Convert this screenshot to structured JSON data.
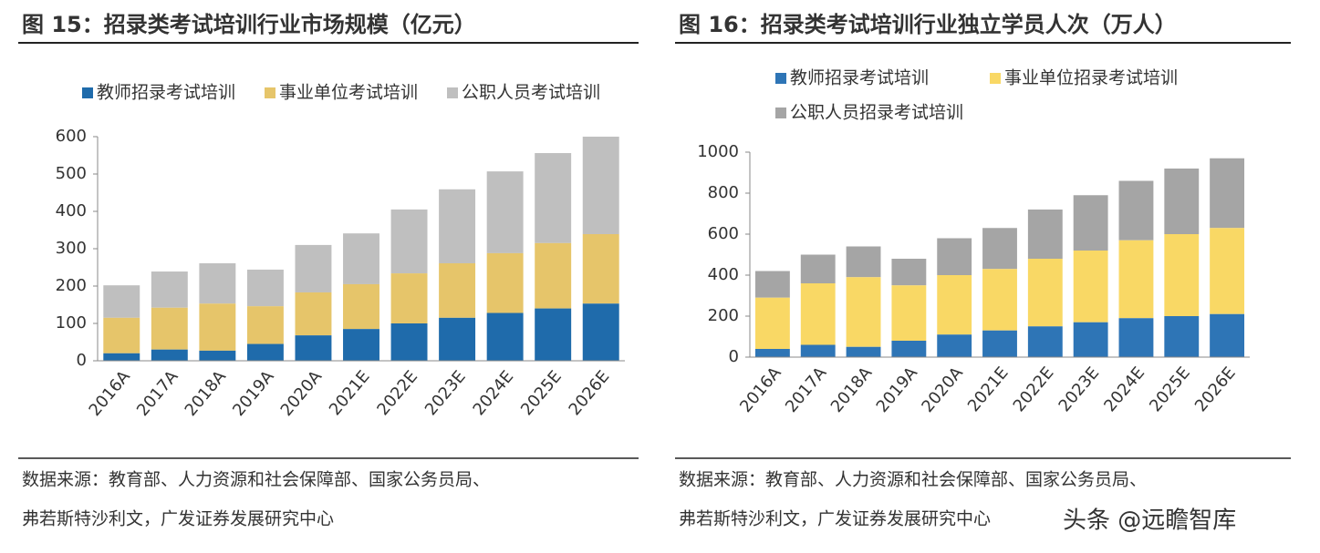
{
  "chart_data": [
    {
      "type": "bar",
      "stacked": true,
      "title": "图 15：招录类考试培训行业市场规模（亿元）",
      "source": [
        "数据来源：教育部、人力资源和社会保障部、国家公务员局、",
        "弗若斯特沙利文，广发证券发展研究中心"
      ],
      "categories": [
        "2016A",
        "2017A",
        "2018A",
        "2019A",
        "2020A",
        "2021E",
        "2022E",
        "2023E",
        "2024E",
        "2025E",
        "2026E"
      ],
      "series": [
        {
          "name": "教师招录考试培训",
          "color": "#1f6bab",
          "values": [
            20,
            30,
            27,
            45,
            68,
            85,
            100,
            115,
            128,
            140,
            153
          ]
        },
        {
          "name": "事业单位考试培训",
          "color": "#e6c56a",
          "values": [
            95,
            112,
            126,
            101,
            115,
            120,
            134,
            146,
            160,
            175,
            186
          ]
        },
        {
          "name": "公职人员考试培训",
          "color": "#bfbfbf",
          "values": [
            87,
            97,
            108,
            98,
            127,
            136,
            171,
            198,
            219,
            241,
            261
          ]
        }
      ],
      "ylim": [
        0,
        600
      ],
      "yticks": [
        0,
        100,
        200,
        300,
        400,
        500,
        600
      ]
    },
    {
      "type": "bar",
      "stacked": true,
      "title": "图 16：招录类考试培训行业独立学员人次（万人）",
      "source": [
        "数据来源：教育部、人力资源和社会保障部、国家公务员局、",
        "弗若斯特沙利文，广发证券发展研究中心"
      ],
      "categories": [
        "2016A",
        "2017A",
        "2018A",
        "2019A",
        "2020A",
        "2021E",
        "2022E",
        "2023E",
        "2024E",
        "2025E",
        "2026E"
      ],
      "series": [
        {
          "name": "教师招录考试培训",
          "color": "#2e75b6",
          "values": [
            40,
            60,
            50,
            80,
            110,
            130,
            150,
            170,
            190,
            200,
            210
          ]
        },
        {
          "name": "事业单位招录考试培训",
          "color": "#f9d865",
          "values": [
            250,
            300,
            340,
            270,
            290,
            300,
            330,
            350,
            380,
            400,
            420
          ]
        },
        {
          "name": "公职人员招录考试培训",
          "color": "#a5a5a5",
          "values": [
            130,
            140,
            150,
            130,
            180,
            200,
            240,
            270,
            290,
            320,
            340
          ]
        }
      ],
      "ylim": [
        0,
        1000
      ],
      "yticks": [
        0,
        200,
        400,
        600,
        800,
        1000
      ]
    }
  ],
  "watermark": "头条 @远瞻智库"
}
